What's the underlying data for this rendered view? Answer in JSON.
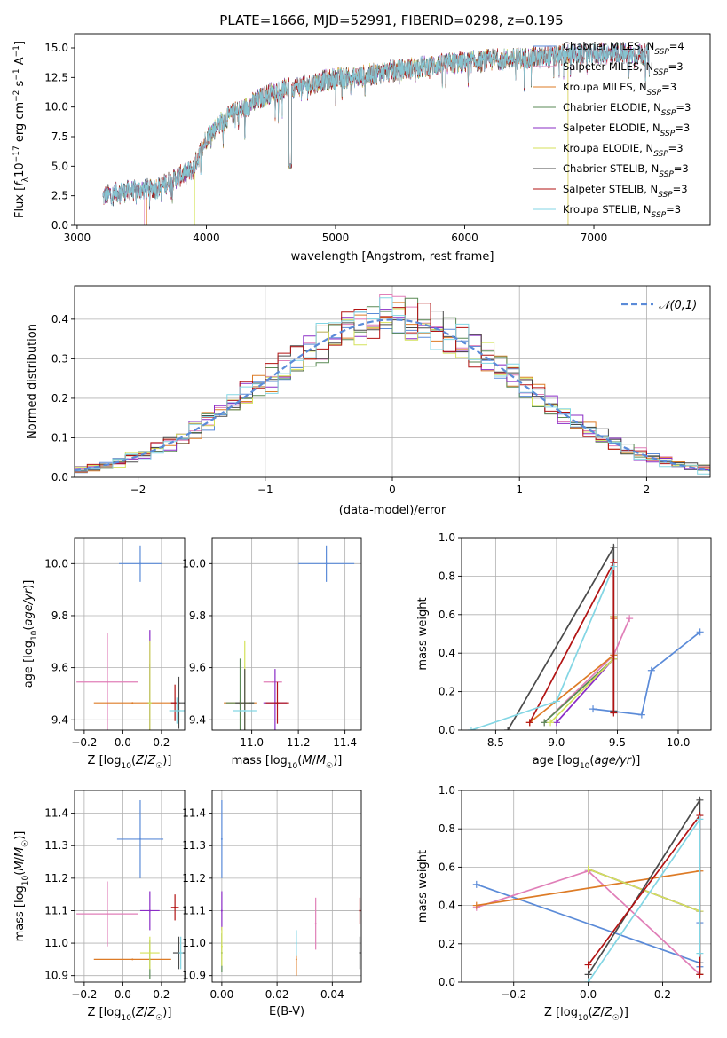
{
  "figure_title": "PLATE=1666, MJD=52991, FIBERID=0298, z=0.195",
  "colors": {
    "Chabrier MILES": "#5b8bd8",
    "Salpeter MILES": "#e07fb8",
    "Kroupa MILES": "#dd7b26",
    "Chabrier ELODIE": "#5a8a55",
    "Salpeter ELODIE": "#8a2cc6",
    "Kroupa ELODIE": "#d4e25a",
    "Chabrier STELIB": "#4a4a4a",
    "Salpeter STELIB": "#b21313",
    "Kroupa STELIB": "#83d6e4",
    "normal": "#5b8bd8"
  },
  "chart_data": [
    {
      "id": "spectrum",
      "type": "line",
      "title": "PLATE=1666, MJD=52991, FIBERID=0298, z=0.195",
      "xlabel": "wavelength [Angstrom, rest frame]",
      "ylabel": "Flux [f_λ 10^-17 erg cm^-2 s^-1 A^-1]",
      "xlim": [
        2980,
        7900
      ],
      "ylim": [
        0,
        16.2
      ],
      "xticks": [
        3000,
        4000,
        5000,
        6000,
        7000
      ],
      "yticks": [
        0.0,
        2.5,
        5.0,
        7.5,
        10.0,
        12.5,
        15.0
      ],
      "legend_position": "upper-right",
      "legend": [
        "Chabrier MILES, N_SSP=4",
        "Salpeter MILES, N_SSP=3",
        "Kroupa MILES, N_SSP=3",
        "Chabrier ELODIE, N_SSP=3",
        "Salpeter ELODIE, N_SSP=3",
        "Kroupa ELODIE, N_SSP=3",
        "Chabrier STELIB, N_SSP=3",
        "Salpeter STELIB, N_SSP=3",
        "Kroupa STELIB, N_SSP=3"
      ],
      "continuum": {
        "x": [
          3200,
          3300,
          3400,
          3500,
          3600,
          3700,
          3800,
          3900,
          4000,
          4100,
          4200,
          4300,
          4400,
          4500,
          4600,
          4700,
          4800,
          4900,
          5000,
          5200,
          5400,
          5600,
          5800,
          6000,
          6200,
          6400,
          6600,
          6800,
          7000,
          7200,
          7400
        ],
        "y": [
          2.4,
          2.8,
          2.9,
          3.0,
          3.1,
          3.6,
          4.2,
          4.8,
          7.4,
          8.6,
          9.4,
          9.9,
          10.6,
          11.2,
          11.5,
          11.7,
          11.9,
          12.2,
          12.4,
          12.6,
          13.0,
          13.3,
          13.6,
          13.8,
          14.0,
          14.1,
          14.2,
          14.4,
          14.5,
          14.5,
          14.4
        ]
      },
      "model_ranges": [
        {
          "start": 3200,
          "end": 7400
        },
        {
          "start": 3520,
          "end": 7400
        },
        {
          "start": 3540,
          "end": 6800
        },
        {
          "start": 3200,
          "end": 7430
        },
        {
          "start": 3200,
          "end": 7430
        },
        {
          "start": 3910,
          "end": 6800
        },
        {
          "start": 3200,
          "end": 7430
        },
        {
          "start": 3200,
          "end": 7430
        },
        {
          "start": 3200,
          "end": 7430
        }
      ]
    },
    {
      "id": "residuals",
      "type": "area",
      "xlabel": "(data-model)/error",
      "ylabel": "Normed distribution",
      "xlim": [
        -2.5,
        2.5
      ],
      "ylim": [
        0,
        0.485
      ],
      "xticks": [
        -2,
        -1,
        0,
        1,
        2
      ],
      "yticks": [
        0.0,
        0.1,
        0.2,
        0.3,
        0.4
      ],
      "legend_position": "upper-right",
      "legend": [
        "𝒩(0,1)"
      ],
      "bins": {
        "start": -2.5,
        "width": 0.1,
        "count": 50
      },
      "normal_curve": {
        "mean": 0,
        "sigma": 1
      }
    },
    {
      "id": "age_vs_Z",
      "type": "scatter",
      "xlabel": "Z [log10(Z/Z☉)]",
      "ylabel": "age [log10(age/yr)]",
      "xlim": [
        -0.25,
        0.32
      ],
      "ylim": [
        9.36,
        10.1
      ],
      "xticks": [
        -0.2,
        0.0,
        0.2
      ],
      "yticks": [
        9.4,
        9.6,
        9.8,
        10.0
      ],
      "points": [
        {
          "model": "Chabrier MILES",
          "x": 0.09,
          "y": 10.0,
          "xerr": 0.11,
          "yerr": 0.07
        },
        {
          "model": "Salpeter MILES",
          "x": -0.08,
          "y": 9.545,
          "xerr": 0.16,
          "yerr": 0.19
        },
        {
          "model": "Kroupa MILES",
          "x": 0.05,
          "y": 9.465,
          "xerr": 0.2,
          "yerr": 0.0
        },
        {
          "model": "Chabrier ELODIE",
          "x": 0.14,
          "y": 9.465,
          "xerr": 0.01,
          "yerr": 0.15
        },
        {
          "model": "Salpeter ELODIE",
          "x": 0.14,
          "y": 9.465,
          "xerr": 0.0,
          "yerr": 0.28
        },
        {
          "model": "Kroupa ELODIE",
          "x": 0.14,
          "y": 9.465,
          "xerr": 0.01,
          "yerr": 0.24
        },
        {
          "model": "Chabrier STELIB",
          "x": 0.29,
          "y": 9.465,
          "xerr": 0.04,
          "yerr": 0.1
        },
        {
          "model": "Salpeter STELIB",
          "x": 0.27,
          "y": 9.465,
          "xerr": 0.02,
          "yerr": 0.07
        },
        {
          "model": "Kroupa STELIB",
          "x": 0.28,
          "y": 9.435,
          "xerr": 0.04,
          "yerr": 0.05
        }
      ]
    },
    {
      "id": "age_vs_mass",
      "type": "scatter",
      "xlabel": "mass [log10(M/M☉)]",
      "ylabel": "",
      "xlim": [
        10.83,
        11.47
      ],
      "ylim": [
        9.36,
        10.1
      ],
      "xticks": [
        11.0,
        11.2,
        11.4
      ],
      "yticks": [
        9.4,
        9.6,
        9.8,
        10.0
      ],
      "points": [
        {
          "model": "Chabrier MILES",
          "x": 11.32,
          "y": 10.0,
          "xerr": 0.12,
          "yerr": 0.07
        },
        {
          "model": "Salpeter MILES",
          "x": 11.09,
          "y": 9.545,
          "xerr": 0.04,
          "yerr": 0.0
        },
        {
          "model": "Kroupa MILES",
          "x": 10.95,
          "y": 9.465,
          "xerr": 0.07,
          "yerr": 0.01
        },
        {
          "model": "Chabrier ELODIE",
          "x": 10.95,
          "y": 9.465,
          "xerr": 0.06,
          "yerr": 0.17
        },
        {
          "model": "Salpeter ELODIE",
          "x": 11.1,
          "y": 9.465,
          "xerr": 0.05,
          "yerr": 0.13
        },
        {
          "model": "Kroupa ELODIE",
          "x": 10.97,
          "y": 9.465,
          "xerr": 0.02,
          "yerr": 0.24
        },
        {
          "model": "Chabrier STELIB",
          "x": 10.97,
          "y": 9.465,
          "xerr": 0.04,
          "yerr": 0.13
        },
        {
          "model": "Salpeter STELIB",
          "x": 11.11,
          "y": 9.465,
          "xerr": 0.05,
          "yerr": 0.08
        },
        {
          "model": "Kroupa STELIB",
          "x": 10.97,
          "y": 9.435,
          "xerr": 0.05,
          "yerr": 0.0
        }
      ]
    },
    {
      "id": "weight_vs_age",
      "type": "line",
      "xlabel": "age [log10(age/yr)]",
      "ylabel": "mass weight",
      "xlim": [
        8.22,
        10.27
      ],
      "ylim": [
        0,
        1.0
      ],
      "xticks": [
        8.5,
        9.0,
        9.5,
        10.0
      ],
      "yticks": [
        0.0,
        0.2,
        0.4,
        0.6,
        0.8,
        1.0
      ],
      "series": [
        {
          "model": "Chabrier MILES",
          "x": [
            9.3,
            9.7,
            9.78,
            10.18
          ],
          "y": [
            0.11,
            0.08,
            0.31,
            0.51
          ]
        },
        {
          "model": "Salpeter MILES",
          "x": [
            8.9,
            9.47,
            9.6
          ],
          "y": [
            0.04,
            0.39,
            0.58
          ]
        },
        {
          "model": "Kroupa MILES",
          "x": [
            8.78,
            9.47,
            9.47
          ],
          "y": [
            0.04,
            0.39,
            0.58
          ]
        },
        {
          "model": "Chabrier ELODIE",
          "x": [
            8.9,
            9.47,
            9.47
          ],
          "y": [
            0.04,
            0.37,
            0.59
          ]
        },
        {
          "model": "Salpeter ELODIE",
          "x": [
            9.0,
            9.47,
            9.47
          ],
          "y": [
            0.04,
            0.37,
            0.59
          ]
        },
        {
          "model": "Kroupa ELODIE",
          "x": [
            8.95,
            9.47,
            9.47
          ],
          "y": [
            0.04,
            0.37,
            0.59
          ]
        },
        {
          "model": "Chabrier STELIB",
          "x": [
            8.6,
            9.47,
            9.47
          ],
          "y": [
            0.0,
            0.95,
            0.1
          ]
        },
        {
          "model": "Salpeter STELIB",
          "x": [
            8.78,
            9.47,
            9.47
          ],
          "y": [
            0.04,
            0.87,
            0.09
          ]
        },
        {
          "model": "Kroupa STELIB",
          "x": [
            8.3,
            9.0,
            9.47
          ],
          "y": [
            0.0,
            0.15,
            0.85
          ]
        }
      ]
    },
    {
      "id": "mass_vs_Z",
      "type": "scatter",
      "xlabel": "Z [log10(Z/Z☉)]",
      "ylabel": "mass [log10(M/M☉)]",
      "xlim": [
        -0.25,
        0.32
      ],
      "ylim": [
        10.88,
        11.47
      ],
      "xticks": [
        -0.2,
        0.0,
        0.2
      ],
      "yticks": [
        10.9,
        11.0,
        11.1,
        11.2,
        11.3,
        11.4
      ],
      "points": [
        {
          "model": "Chabrier MILES",
          "x": 0.09,
          "y": 11.32,
          "xerr": 0.12,
          "yerr": 0.12
        },
        {
          "model": "Salpeter MILES",
          "x": -0.08,
          "y": 11.09,
          "xerr": 0.16,
          "yerr": 0.1
        },
        {
          "model": "Kroupa MILES",
          "x": 0.05,
          "y": 10.95,
          "xerr": 0.2,
          "yerr": 0.0
        },
        {
          "model": "Chabrier ELODIE",
          "x": 0.14,
          "y": 10.95,
          "xerr": 0.0,
          "yerr": 0.06
        },
        {
          "model": "Salpeter ELODIE",
          "x": 0.14,
          "y": 11.1,
          "xerr": 0.05,
          "yerr": 0.06
        },
        {
          "model": "Kroupa ELODIE",
          "x": 0.14,
          "y": 10.97,
          "xerr": 0.05,
          "yerr": 0.05
        },
        {
          "model": "Chabrier STELIB",
          "x": 0.29,
          "y": 10.97,
          "xerr": 0.03,
          "yerr": 0.05
        },
        {
          "model": "Salpeter STELIB",
          "x": 0.27,
          "y": 11.11,
          "xerr": 0.02,
          "yerr": 0.04
        },
        {
          "model": "Kroupa STELIB",
          "x": 0.3,
          "y": 10.97,
          "xerr": 0.01,
          "yerr": 0.05
        }
      ]
    },
    {
      "id": "mass_vs_EBV",
      "type": "scatter",
      "xlabel": "E(B-V)",
      "ylabel": "",
      "xlim": [
        -0.0035,
        0.0505
      ],
      "ylim": [
        10.88,
        11.47
      ],
      "xticks": [
        0.0,
        0.02,
        0.04
      ],
      "yticks": [
        10.9,
        11.0,
        11.1,
        11.2,
        11.3,
        11.4
      ],
      "points": [
        {
          "model": "Chabrier MILES",
          "x": 0.0,
          "y": 11.32,
          "xerr": 0.0,
          "yerr": 0.12
        },
        {
          "model": "Salpeter MILES",
          "x": 0.034,
          "y": 11.06,
          "xerr": 0.0,
          "yerr": 0.08
        },
        {
          "model": "Kroupa MILES",
          "x": 0.027,
          "y": 10.95,
          "xerr": 0.0,
          "yerr": 0.05
        },
        {
          "model": "Chabrier ELODIE",
          "x": 0.0,
          "y": 10.97,
          "xerr": 0.0,
          "yerr": 0.06
        },
        {
          "model": "Salpeter ELODIE",
          "x": 0.0,
          "y": 11.1,
          "xerr": 0.0,
          "yerr": 0.06
        },
        {
          "model": "Kroupa ELODIE",
          "x": 0.0,
          "y": 10.99,
          "xerr": 0.0,
          "yerr": 0.06
        },
        {
          "model": "Chabrier STELIB",
          "x": 0.05,
          "y": 10.97,
          "xerr": 0.0,
          "yerr": 0.05
        },
        {
          "model": "Salpeter STELIB",
          "x": 0.05,
          "y": 11.1,
          "xerr": 0.0,
          "yerr": 0.04
        },
        {
          "model": "Kroupa STELIB",
          "x": 0.027,
          "y": 11.0,
          "xerr": 0.0,
          "yerr": 0.04
        }
      ]
    },
    {
      "id": "weight_vs_Z",
      "type": "line",
      "xlabel": "Z [log10(Z/Z☉)]",
      "ylabel": "mass weight",
      "xlim": [
        -0.34,
        0.33
      ],
      "ylim": [
        0,
        1.0
      ],
      "xticks": [
        -0.2,
        0.0,
        0.2
      ],
      "yticks": [
        0.0,
        0.2,
        0.4,
        0.6,
        0.8,
        1.0
      ],
      "series": [
        {
          "model": "Chabrier MILES",
          "x": [
            -0.3,
            0.3,
            0.3,
            0.3
          ],
          "y": [
            0.51,
            0.1,
            0.31,
            0.08
          ]
        },
        {
          "model": "Salpeter MILES",
          "x": [
            -0.3,
            0.0,
            0.3
          ],
          "y": [
            0.39,
            0.58,
            0.04
          ]
        },
        {
          "model": "Kroupa MILES",
          "x": [
            -0.3,
            0.3,
            0.3
          ],
          "y": [
            0.4,
            0.58,
            0.04
          ]
        },
        {
          "model": "Chabrier ELODIE",
          "x": [
            0.0,
            0.3,
            0.3
          ],
          "y": [
            0.59,
            0.37,
            0.04
          ]
        },
        {
          "model": "Salpeter ELODIE",
          "x": [
            0.0,
            0.3,
            0.3
          ],
          "y": [
            0.59,
            0.37,
            0.04
          ]
        },
        {
          "model": "Kroupa ELODIE",
          "x": [
            0.0,
            0.3,
            0.3
          ],
          "y": [
            0.59,
            0.37,
            0.04
          ]
        },
        {
          "model": "Chabrier STELIB",
          "x": [
            0.0,
            0.3,
            0.3
          ],
          "y": [
            0.04,
            0.95,
            0.1
          ]
        },
        {
          "model": "Salpeter STELIB",
          "x": [
            0.0,
            0.3,
            0.3
          ],
          "y": [
            0.09,
            0.87,
            0.04
          ]
        },
        {
          "model": "Kroupa STELIB",
          "x": [
            0.0,
            0.3,
            0.3
          ],
          "y": [
            0.0,
            0.85,
            0.15
          ]
        }
      ]
    }
  ]
}
